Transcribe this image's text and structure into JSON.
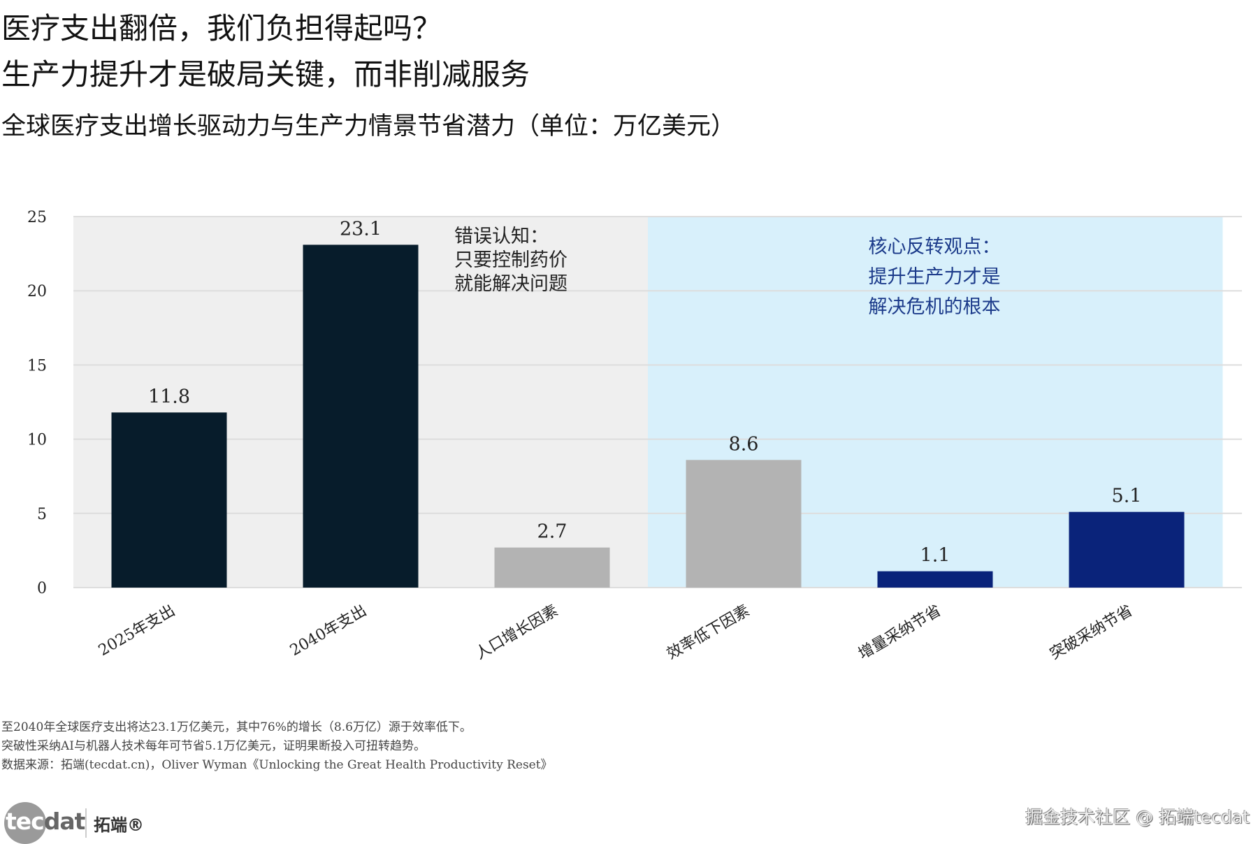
{
  "title_line1": "医疗支出翻倍，我们负担得起吗？",
  "title_line2": "生产力提升才是破局关键，而非削减服务",
  "subtitle": "全球医疗支出增长驱动力与生产力情景节省潜力（单位：万亿美元）",
  "chart_data": {
    "type": "bar",
    "categories": [
      "2025年支出",
      "2040年支出",
      "人口增长因素",
      "效率低下因素",
      "增量采纳节省",
      "突破采纳节省"
    ],
    "values": [
      11.8,
      23.1,
      2.7,
      8.6,
      1.1,
      5.1
    ],
    "value_labels": [
      "11.8",
      "23.1",
      "2.7",
      "8.6",
      "1.1",
      "5.1"
    ],
    "bar_colors": [
      "#071c2b",
      "#071c2b",
      "#b3b3b3",
      "#b3b3b3",
      "#0a237a",
      "#0a237a"
    ],
    "ylim": [
      0,
      25
    ],
    "yticks": [
      0,
      5,
      10,
      15,
      20,
      25
    ],
    "ytick_labels": [
      "0",
      "5",
      "10",
      "15",
      "20",
      "25"
    ],
    "grid": true,
    "regions": [
      {
        "from_category": 0,
        "to_category": 2,
        "color": "#efefef",
        "annotation": [
          "错误认知：",
          "只要控制药价",
          "就能解决问题"
        ],
        "text_color": "#222222"
      },
      {
        "from_category": 3,
        "to_category": 5,
        "color": "#d8f0fb",
        "annotation": [
          "核心反转观点：",
          "提升生产力才是",
          "解决危机的根本"
        ],
        "text_color": "#1b3a8a"
      }
    ]
  },
  "notes": [
    "至2040年全球医疗支出将达23.1万亿美元，其中76%的增长（8.6万亿）源于效率低下。",
    "突破性采纳AI与机器人技术每年可节省5.1万亿美元，证明果断投入可扭转趋势。",
    "数据来源：拓端(tecdat.cn)，Oliver Wyman《Unlocking the Great Health Productivity Reset》"
  ],
  "logo": {
    "part1": "tec",
    "part2": "dat",
    "cn": "拓端®"
  },
  "watermark": "掘金技术社区 @ 拓端tecdat"
}
